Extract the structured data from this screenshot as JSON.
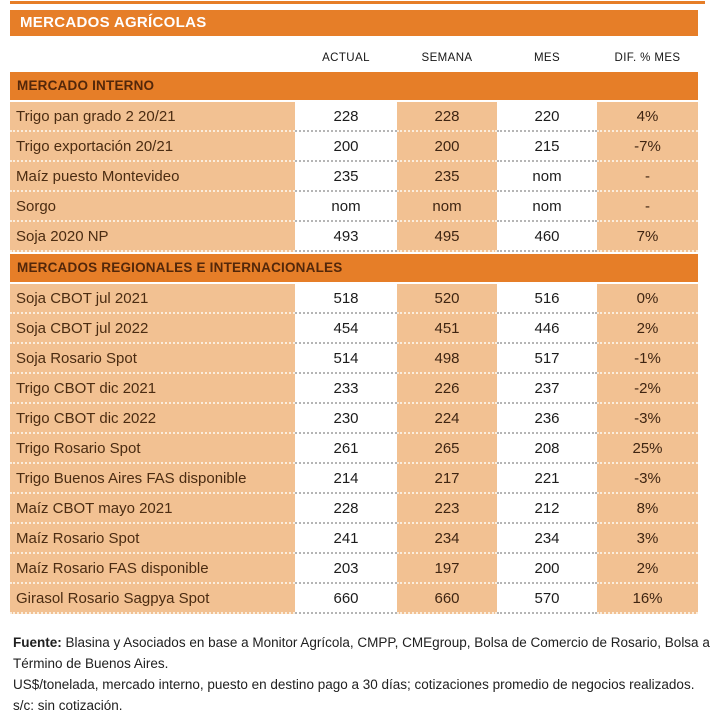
{
  "title": "MERCADOS AGRÍCOLAS",
  "chart_data": {
    "type": "table",
    "title": "MERCADOS AGRÍCOLAS",
    "columns": [
      "ACTUAL",
      "SEMANA",
      "MES",
      "DIF. % MES"
    ],
    "sections": [
      {
        "header": "MERCADO INTERNO",
        "rows": [
          {
            "label": "Trigo pan grado 2 20/21",
            "values": [
              "228",
              "228",
              "220",
              "4%"
            ]
          },
          {
            "label": "Trigo exportación 20/21",
            "values": [
              "200",
              "200",
              "215",
              "-7%"
            ]
          },
          {
            "label": "Maíz puesto Montevideo",
            "values": [
              "235",
              "235",
              "nom",
              "-"
            ]
          },
          {
            "label": "Sorgo",
            "values": [
              "nom",
              "nom",
              "nom",
              "-"
            ]
          },
          {
            "label": "Soja 2020 NP",
            "values": [
              "493",
              "495",
              "460",
              "7%"
            ]
          }
        ]
      },
      {
        "header": "MERCADOS REGIONALES E INTERNACIONALES",
        "rows": [
          {
            "label": "Soja CBOT jul 2021",
            "values": [
              "518",
              "520",
              "516",
              "0%"
            ]
          },
          {
            "label": "Soja CBOT jul 2022",
            "values": [
              "454",
              "451",
              "446",
              "2%"
            ]
          },
          {
            "label": "Soja Rosario Spot",
            "values": [
              "514",
              "498",
              "517",
              "-1%"
            ]
          },
          {
            "label": "Trigo CBOT dic 2021",
            "values": [
              "233",
              "226",
              "237",
              "-2%"
            ]
          },
          {
            "label": "Trigo CBOT dic 2022",
            "values": [
              "230",
              "224",
              "236",
              "-3%"
            ]
          },
          {
            "label": "Trigo Rosario Spot",
            "values": [
              "261",
              "265",
              "208",
              "25%"
            ]
          },
          {
            "label": "Trigo Buenos Aires FAS disponible",
            "values": [
              "214",
              "217",
              "221",
              "-3%"
            ]
          },
          {
            "label": "Maíz CBOT mayo 2021",
            "values": [
              "228",
              "223",
              "212",
              "8%"
            ]
          },
          {
            "label": "Maíz Rosario Spot",
            "values": [
              "241",
              "234",
              "234",
              "3%"
            ]
          },
          {
            "label": "Maíz Rosario FAS disponible",
            "values": [
              "203",
              "197",
              "200",
              "2%"
            ]
          },
          {
            "label": "Girasol Rosario Sagpya Spot",
            "values": [
              "660",
              "660",
              "570",
              "16%"
            ]
          }
        ]
      }
    ]
  },
  "footer": {
    "source_label": "Fuente:",
    "source_text": " Blasina y Asociados en base a Monitor Agrícola, CMPP, CMEgroup, Bolsa de Comercio de Rosario, Bolsa a Término de Buenos Aires.",
    "note1": "US$/tonelada, mercado interno, puesto en destino pago a 30 días; cotizaciones promedio de negocios realizados.",
    "note2": "s/c: sin cotización."
  },
  "colors": {
    "orange": "#E67E28",
    "row_peach": "#F2C192",
    "section_header_text": "#53270A",
    "title_text": "#FFFFFF"
  }
}
